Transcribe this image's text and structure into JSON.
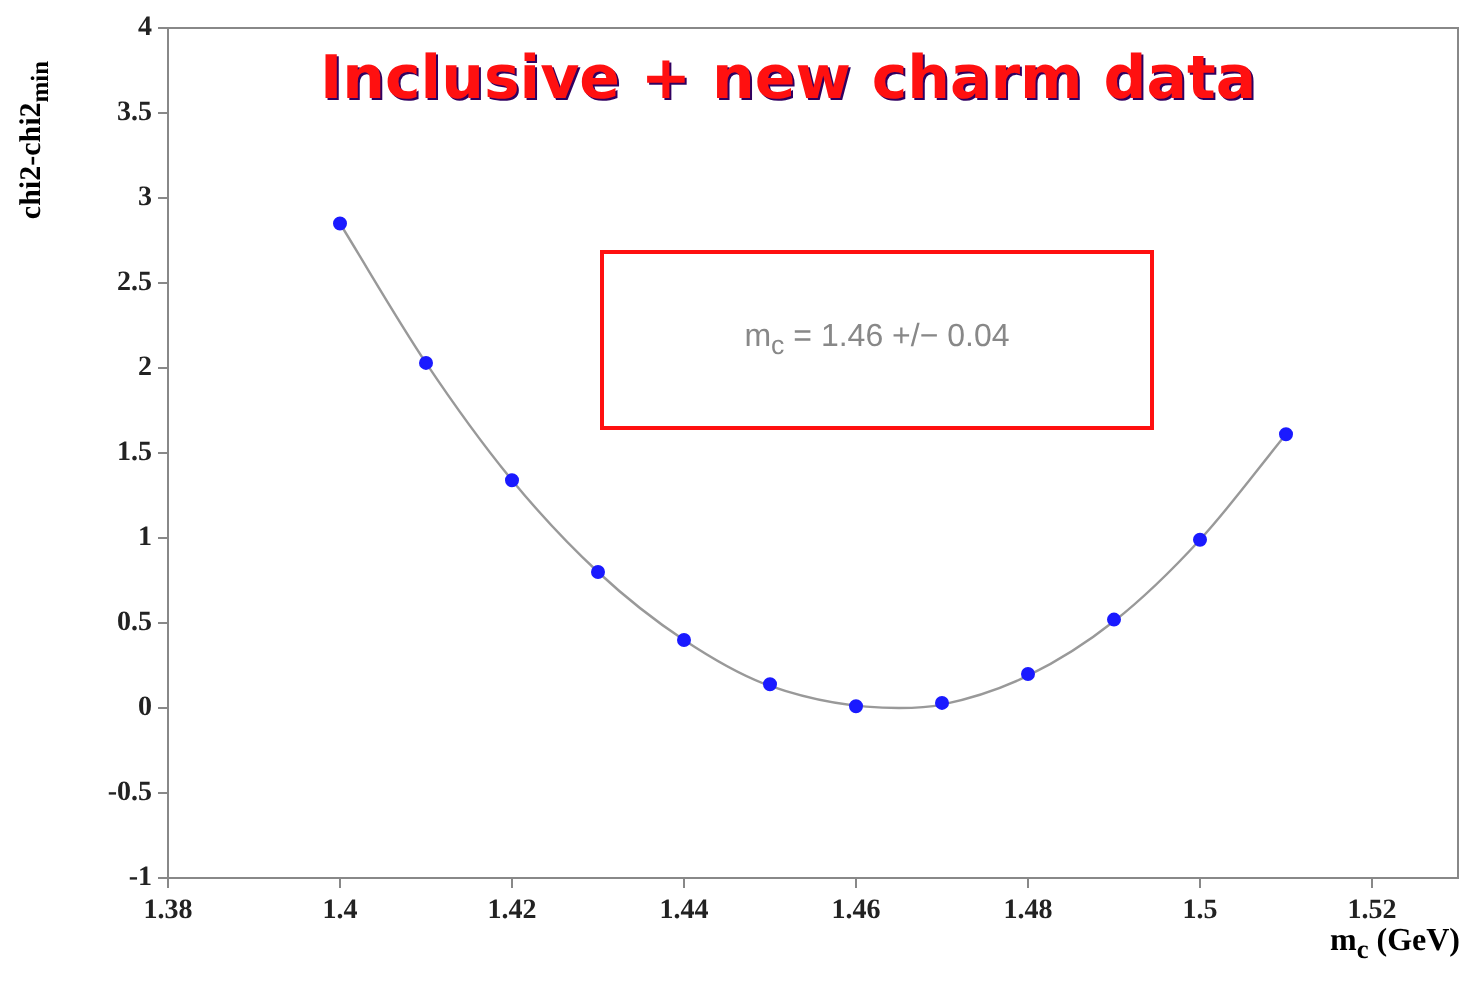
{
  "chart_data": {
    "type": "scatter",
    "title": "Inclusive + new charm data",
    "xlabel": "m$_{c}$ (GeV)",
    "ylabel": "chi2-chi2$_{min}$",
    "annotations": [
      "m$_{c}$ = 1.46 +/− 0.04"
    ],
    "xlim": [
      1.38,
      1.53
    ],
    "xticks": [
      1.38,
      1.4,
      1.42,
      1.44,
      1.46,
      1.48,
      1.5,
      1.52
    ],
    "ylim": [
      -1,
      4
    ],
    "yticks": [
      -1,
      -0.5,
      0,
      0.5,
      1,
      1.5,
      2,
      2.5,
      3,
      3.5,
      4
    ],
    "grid": false,
    "legend": false,
    "series": [
      {
        "type": "line",
        "color": "#999999",
        "marker": "none",
        "x": [
          1.4,
          1.41,
          1.42,
          1.43,
          1.44,
          1.45,
          1.465,
          1.47,
          1.48,
          1.49,
          1.5,
          1.51
        ],
        "values": [
          2.85,
          2.03,
          1.34,
          0.8,
          0.4,
          0.13,
          0.0,
          0.02,
          0.19,
          0.51,
          0.99,
          1.61
        ]
      },
      {
        "type": "scatter",
        "color": "#1a1aff",
        "marker": "circle",
        "x": [
          1.4,
          1.41,
          1.42,
          1.43,
          1.44,
          1.45,
          1.46,
          1.47,
          1.48,
          1.49,
          1.5,
          1.51
        ],
        "values": [
          2.85,
          2.03,
          1.34,
          0.8,
          0.4,
          0.14,
          0.01,
          0.03,
          0.2,
          0.52,
          0.99,
          1.61
        ]
      }
    ]
  }
}
